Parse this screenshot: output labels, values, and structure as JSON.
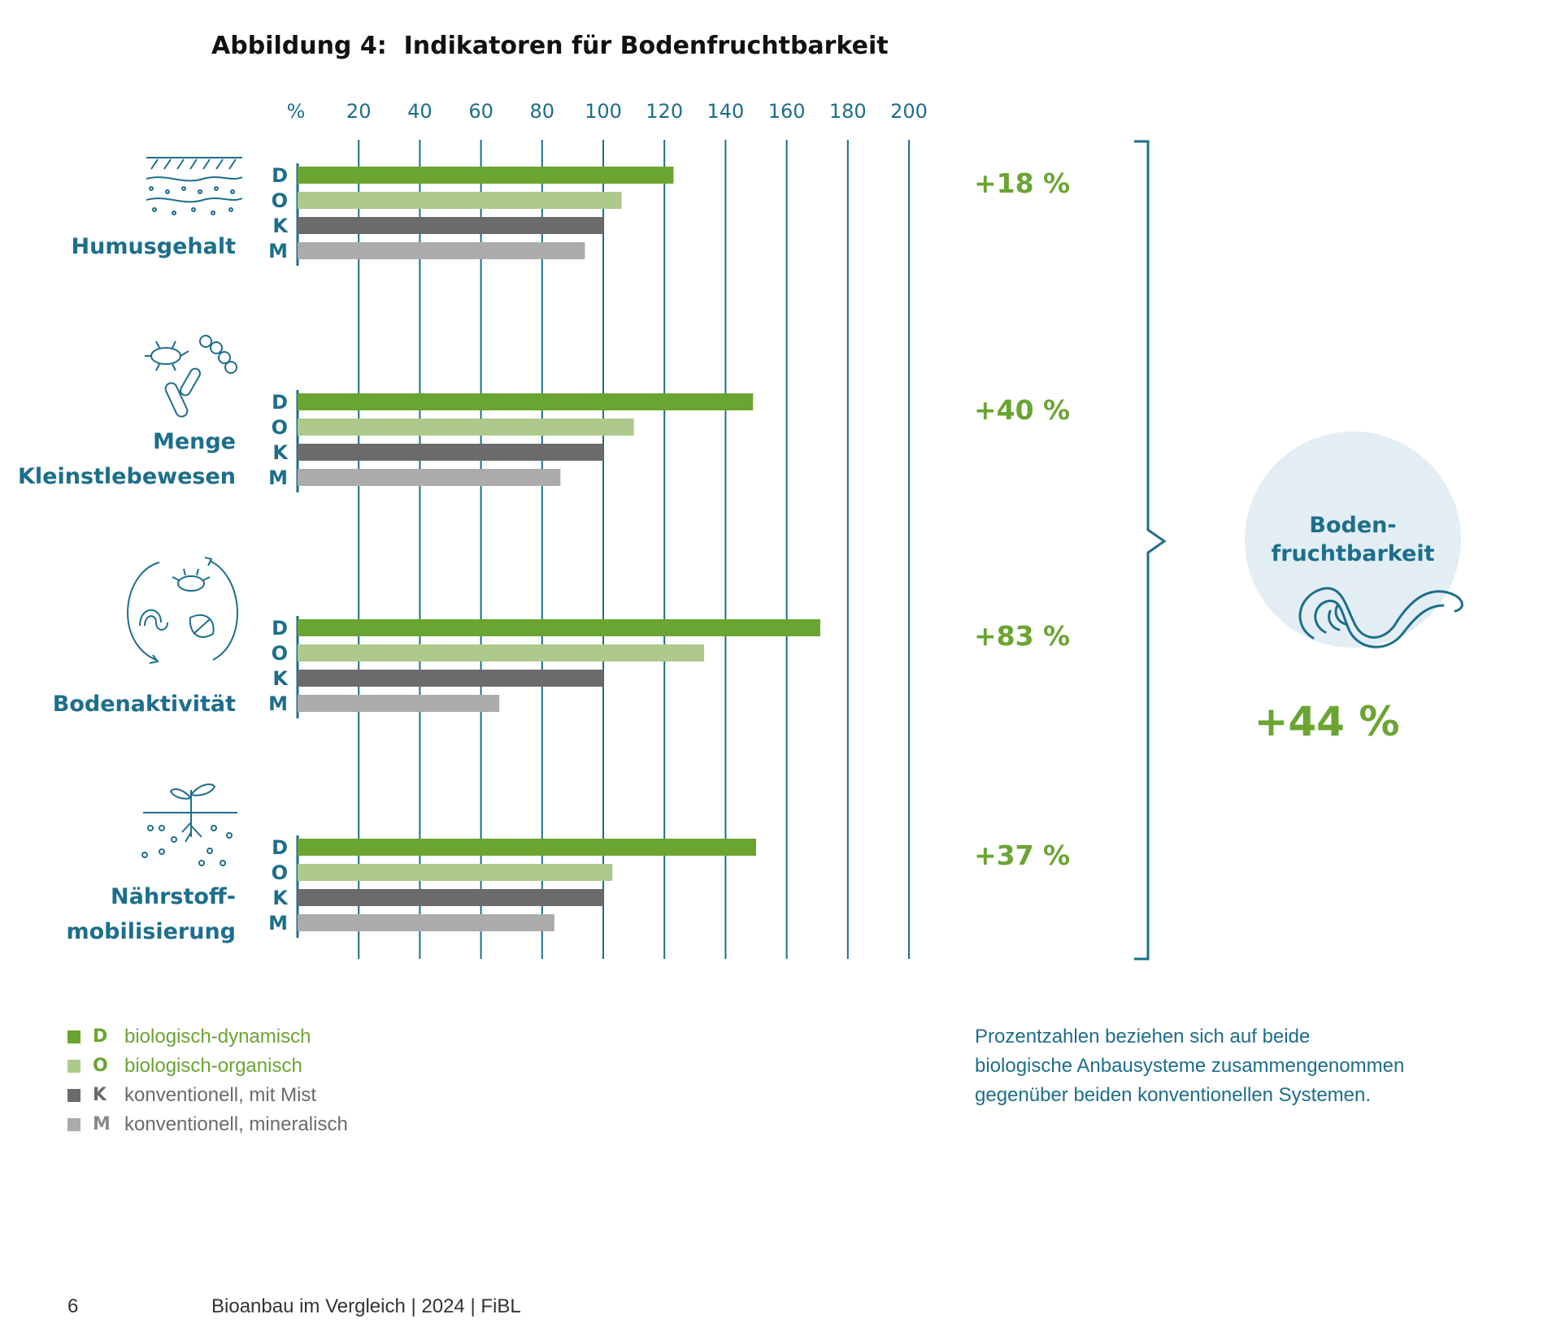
{
  "colors": {
    "D": "#6aa531",
    "O": "#adc98c",
    "K": "#6b6b6b",
    "M": "#ababab",
    "accent": "#1c6e8c",
    "percent_green": "#6aa531",
    "circle_fill": "#e3eef4"
  },
  "chart_data": {
    "type": "bar",
    "orientation": "horizontal",
    "title": "Abbildung 4:  Indikatoren für Bodenfruchtbarkeit",
    "axis_unit": "%",
    "xlim": [
      0,
      200
    ],
    "ticks": [
      "20",
      "40",
      "60",
      "80",
      "100",
      "120",
      "140",
      "160",
      "180",
      "200"
    ],
    "grid": true,
    "series_keys": [
      "D",
      "O",
      "K",
      "M"
    ],
    "groups": [
      {
        "label_lines": [
          "Humusgehalt"
        ],
        "icon": "soil-layers-icon",
        "values": [
          123,
          106,
          100,
          94
        ],
        "change": "+18 %"
      },
      {
        "label_lines": [
          "Menge",
          "Kleinstlebewesen"
        ],
        "icon": "microorganisms-icon",
        "values": [
          149,
          110,
          100,
          86
        ],
        "change": "+40 %"
      },
      {
        "label_lines": [
          "Bodenaktivität"
        ],
        "icon": "soil-activity-cycle-icon",
        "values": [
          171,
          133,
          100,
          66
        ],
        "change": "+83 %"
      },
      {
        "label_lines": [
          "Nährstoff-",
          "mobilisierung"
        ],
        "icon": "plant-roots-icon",
        "values": [
          150,
          103,
          100,
          84
        ],
        "change": "+37 %"
      }
    ]
  },
  "summary": {
    "label_line1": "Boden-",
    "label_line2": "fruchtbarkeit",
    "icon": "earthworm-icon",
    "value": "+44 %"
  },
  "legend": [
    {
      "key": "D",
      "label": "biologisch-dynamisch"
    },
    {
      "key": "O",
      "label": "biologisch-organisch"
    },
    {
      "key": "K",
      "label": "konventionell, mit Mist"
    },
    {
      "key": "M",
      "label": "konventionell, mineralisch"
    }
  ],
  "note": {
    "line1": "Prozentzahlen beziehen sich auf beide",
    "line2": "biologische Anbausysteme zusammengenommen",
    "line3": "gegenüber beiden konventionellen Systemen."
  },
  "footer": {
    "page_number": "6",
    "text": "Bioanbau im Vergleich | 2024 | FiBL"
  }
}
